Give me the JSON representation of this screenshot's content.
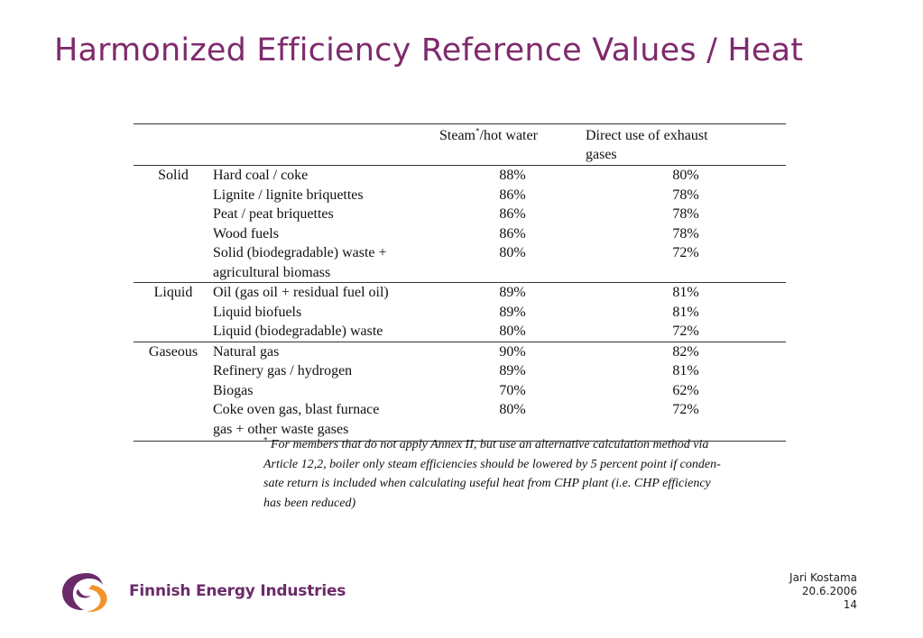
{
  "slide": {
    "title": "Harmonized Efficiency Reference Values / Heat"
  },
  "table": {
    "headers": {
      "steam_pre": "Steam",
      "steam_sup": "*",
      "steam_post": "/hot water",
      "direct_line1": "Direct use of exhaust",
      "direct_line2": "gases"
    },
    "groups": [
      {
        "category": "Solid",
        "rows": [
          {
            "fuel": "Hard coal / coke",
            "steam": "88%",
            "direct": "80%"
          },
          {
            "fuel": "Lignite / lignite briquettes",
            "steam": "86%",
            "direct": "78%"
          },
          {
            "fuel": "Peat / peat briquettes",
            "steam": "86%",
            "direct": "78%"
          },
          {
            "fuel": "Wood fuels",
            "steam": "86%",
            "direct": "78%"
          },
          {
            "fuel": "Solid (biodegradable) waste +",
            "fuel_line2": "agricultural biomass",
            "steam": "80%",
            "direct": "72%"
          }
        ]
      },
      {
        "category": "Liquid",
        "rows": [
          {
            "fuel": "Oil (gas oil + residual fuel oil)",
            "steam": "89%",
            "direct": "81%"
          },
          {
            "fuel": "Liquid biofuels",
            "steam": "89%",
            "direct": "81%"
          },
          {
            "fuel": "Liquid (biodegradable) waste",
            "steam": "80%",
            "direct": "72%"
          }
        ]
      },
      {
        "category": "Gaseous",
        "rows": [
          {
            "fuel": "Natural gas",
            "steam": "90%",
            "direct": "82%"
          },
          {
            "fuel": "Refinery gas / hydrogen",
            "steam": "89%",
            "direct": "81%"
          },
          {
            "fuel": "Biogas",
            "steam": "70%",
            "direct": "62%"
          },
          {
            "fuel": "Coke oven gas, blast furnace",
            "fuel_line2": "gas + other waste gases",
            "steam": "80%",
            "direct": "72%"
          }
        ]
      }
    ]
  },
  "footnote": {
    "marker": "*",
    "lines": [
      "For members that do not apply Annex II, but use an alternative calculation method via",
      "Article 12,2, boiler only steam efficiencies should be lowered by 5 percent point if conden-",
      "sate return is included when calculating useful heat from CHP plant (i.e. CHP efficiency",
      "has been reduced)"
    ]
  },
  "logo": {
    "text": "Finnish Energy Industries",
    "colors": {
      "purple": "#6b2a6a",
      "orange": "#f0932b"
    }
  },
  "footer": {
    "author": "Jari Kostama",
    "date": "20.6.2006",
    "page": "14"
  },
  "colors": {
    "title": "#7f2a6c"
  }
}
